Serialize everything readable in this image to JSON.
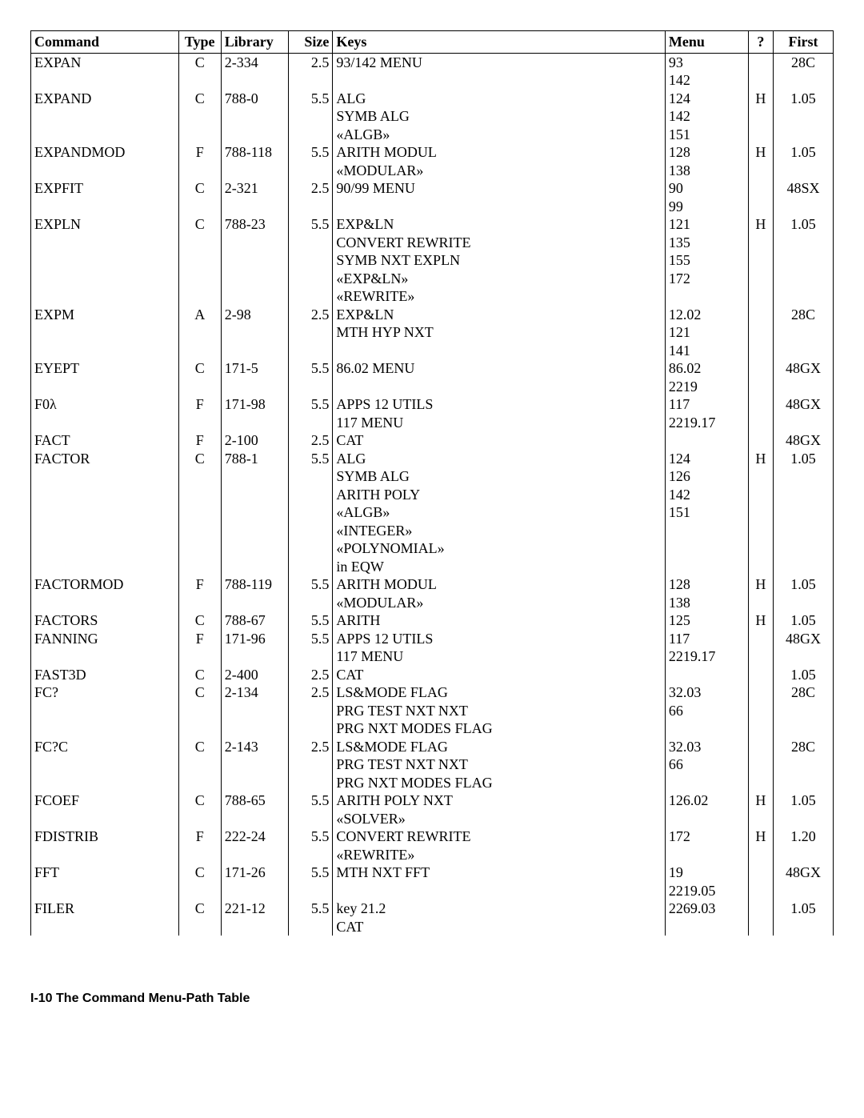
{
  "columns": {
    "command": "Command",
    "type": "Type",
    "library": "Library",
    "size": "Size",
    "keys": "Keys",
    "menu": "Menu",
    "p": "?",
    "first": "First"
  },
  "column_widths": {
    "command": "16%",
    "type": "4.6%",
    "library": "7.3%",
    "size": "4.8%",
    "keys": "36%",
    "menu": "9%",
    "p": "2.7%",
    "first": "6.5%"
  },
  "rows": [
    {
      "command": "EXPAN",
      "type": "C",
      "library": "2-334",
      "size": "2.5",
      "keys": [
        "93/142 MENU"
      ],
      "menu": [
        "93",
        "142"
      ],
      "p": "",
      "first": "28C"
    },
    {
      "command": "EXPAND",
      "type": "C",
      "library": "788-0",
      "size": "5.5",
      "keys": [
        "ALG",
        "SYMB ALG",
        "«ALGB»"
      ],
      "menu": [
        "124",
        "142",
        "151"
      ],
      "p": "H",
      "first": "1.05"
    },
    {
      "command": "EXPANDMOD",
      "type": "F",
      "library": "788-118",
      "size": "5.5",
      "keys": [
        "ARITH MODUL",
        "«MODULAR»"
      ],
      "menu": [
        "128",
        "138"
      ],
      "p": "H",
      "first": "1.05"
    },
    {
      "command": "EXPFIT",
      "type": "C",
      "library": "2-321",
      "size": "2.5",
      "keys": [
        "90/99 MENU"
      ],
      "menu": [
        "90",
        "99"
      ],
      "p": "",
      "first": "48SX"
    },
    {
      "command": "EXPLN",
      "type": "C",
      "library": "788-23",
      "size": "5.5",
      "keys": [
        "EXP&LN",
        "CONVERT REWRITE",
        "SYMB NXT EXPLN",
        "«EXP&LN»",
        "«REWRITE»"
      ],
      "menu": [
        "121",
        "135",
        "155",
        "172"
      ],
      "p": "H",
      "first": "1.05"
    },
    {
      "command": "EXPM",
      "type": "A",
      "library": "2-98",
      "size": "2.5",
      "keys": [
        "EXP&LN",
        "MTH HYP NXT"
      ],
      "menu": [
        "12.02",
        "121",
        "141"
      ],
      "p": "",
      "first": "28C"
    },
    {
      "command": "EYEPT",
      "type": "C",
      "library": "171-5",
      "size": "5.5",
      "keys": [
        "86.02 MENU"
      ],
      "menu": [
        "86.02",
        "2219"
      ],
      "p": "",
      "first": "48GX"
    },
    {
      "command": "F0λ",
      "type": "F",
      "library": "171-98",
      "size": "5.5",
      "keys": [
        "APPS 12 UTILS",
        "117 MENU"
      ],
      "menu": [
        "117",
        "2219.17"
      ],
      "p": "",
      "first": "48GX"
    },
    {
      "command": "FACT",
      "type": "F",
      "library": "2-100",
      "size": "2.5",
      "keys": [
        "CAT"
      ],
      "menu": [
        ""
      ],
      "p": "",
      "first": "48GX"
    },
    {
      "command": "FACTOR",
      "type": "C",
      "library": "788-1",
      "size": "5.5",
      "keys": [
        "ALG",
        "SYMB ALG",
        "ARITH POLY",
        "«ALGB»",
        "«INTEGER»",
        "«POLYNOMIAL»",
        "in EQW"
      ],
      "menu": [
        "124",
        "126",
        "142",
        "151"
      ],
      "p": "H",
      "first": "1.05"
    },
    {
      "command": "FACTORMOD",
      "type": "F",
      "library": "788-119",
      "size": "5.5",
      "keys": [
        "ARITH MODUL",
        "«MODULAR»"
      ],
      "menu": [
        "128",
        "138"
      ],
      "p": "H",
      "first": "1.05"
    },
    {
      "command": "FACTORS",
      "type": "C",
      "library": "788-67",
      "size": "5.5",
      "keys": [
        "ARITH"
      ],
      "menu": [
        "125"
      ],
      "p": "H",
      "first": "1.05"
    },
    {
      "command": "FANNING",
      "type": "F",
      "library": "171-96",
      "size": "5.5",
      "keys": [
        "APPS 12 UTILS",
        "117 MENU"
      ],
      "menu": [
        "117",
        "2219.17"
      ],
      "p": "",
      "first": "48GX"
    },
    {
      "command": "FAST3D",
      "type": "C",
      "library": "2-400",
      "size": "2.5",
      "keys": [
        "CAT"
      ],
      "menu": [
        ""
      ],
      "p": "",
      "first": "1.05"
    },
    {
      "command": "FC?",
      "type": "C",
      "library": "2-134",
      "size": "2.5",
      "keys": [
        "LS&MODE FLAG",
        "PRG TEST NXT NXT",
        "PRG NXT MODES FLAG"
      ],
      "menu": [
        "32.03",
        "66"
      ],
      "p": "",
      "first": "28C"
    },
    {
      "command": "FC?C",
      "type": "C",
      "library": "2-143",
      "size": "2.5",
      "keys": [
        "LS&MODE FLAG",
        "PRG TEST NXT NXT",
        "PRG NXT MODES FLAG"
      ],
      "menu": [
        "32.03",
        "66"
      ],
      "p": "",
      "first": "28C"
    },
    {
      "command": "FCOEF",
      "type": "C",
      "library": "788-65",
      "size": "5.5",
      "keys": [
        "ARITH POLY NXT",
        "«SOLVER»"
      ],
      "menu": [
        "126.02"
      ],
      "p": "H",
      "first": "1.05"
    },
    {
      "command": "FDISTRIB",
      "type": "F",
      "library": "222-24",
      "size": "5.5",
      "keys": [
        "CONVERT REWRITE",
        "«REWRITE»"
      ],
      "menu": [
        "172"
      ],
      "p": "H",
      "first": "1.20"
    },
    {
      "command": "FFT",
      "type": "C",
      "library": "171-26",
      "size": "5.5",
      "keys": [
        "MTH NXT FFT"
      ],
      "menu": [
        "19",
        "2219.05"
      ],
      "p": "",
      "first": "48GX"
    },
    {
      "command": "FILER",
      "type": "C",
      "library": "221-12",
      "size": "5.5",
      "keys": [
        "key 21.2",
        "CAT"
      ],
      "menu": [
        "2269.03"
      ],
      "p": "",
      "first": "1.05"
    }
  ],
  "footer": "I-10   The Command Menu-Path Table"
}
